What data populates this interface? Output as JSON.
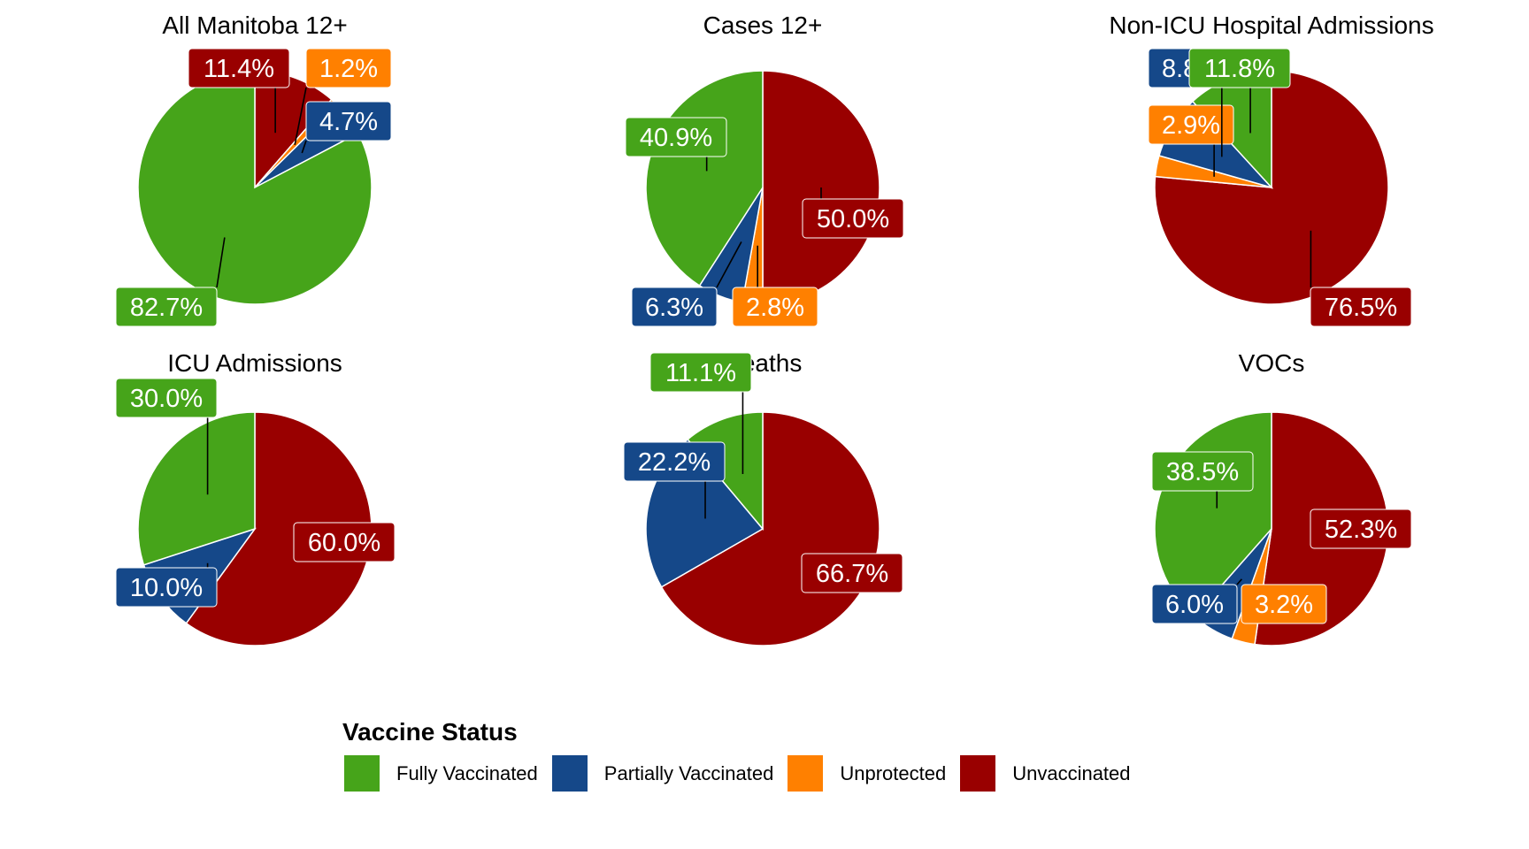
{
  "chart_data": {
    "type": "pie",
    "category_order": [
      "Fully Vaccinated",
      "Partially Vaccinated",
      "Unprotected",
      "Unvaccinated"
    ],
    "colors": {
      "Fully Vaccinated": "#46A41A",
      "Partially Vaccinated": "#154889",
      "Unprotected": "#FF8000",
      "Unvaccinated": "#990000"
    },
    "panels": [
      {
        "title": "All Manitoba 12+",
        "slices": [
          {
            "category": "Unvaccinated",
            "value": 11.4,
            "label": "11.4%"
          },
          {
            "category": "Unprotected",
            "value": 1.2,
            "label": "1.2%"
          },
          {
            "category": "Partially Vaccinated",
            "value": 4.7,
            "label": "4.7%"
          },
          {
            "category": "Fully Vaccinated",
            "value": 82.7,
            "label": "82.7%"
          }
        ]
      },
      {
        "title": "Cases 12+",
        "slices": [
          {
            "category": "Unvaccinated",
            "value": 50.0,
            "label": "50.0%"
          },
          {
            "category": "Unprotected",
            "value": 2.8,
            "label": "2.8%"
          },
          {
            "category": "Partially Vaccinated",
            "value": 6.3,
            "label": "6.3%"
          },
          {
            "category": "Fully Vaccinated",
            "value": 40.9,
            "label": "40.9%"
          }
        ]
      },
      {
        "title": "Non-ICU Hospital Admissions",
        "slices": [
          {
            "category": "Unvaccinated",
            "value": 76.5,
            "label": "76.5%"
          },
          {
            "category": "Unprotected",
            "value": 2.9,
            "label": "2.9%"
          },
          {
            "category": "Partially Vaccinated",
            "value": 8.8,
            "label": "8.8%"
          },
          {
            "category": "Fully Vaccinated",
            "value": 11.8,
            "label": "11.8%"
          }
        ]
      },
      {
        "title": "ICU Admissions",
        "slices": [
          {
            "category": "Unvaccinated",
            "value": 60.0,
            "label": "60.0%"
          },
          {
            "category": "Partially Vaccinated",
            "value": 10.0,
            "label": "10.0%"
          },
          {
            "category": "Fully Vaccinated",
            "value": 30.0,
            "label": "30.0%"
          }
        ]
      },
      {
        "title": "Deaths",
        "slices": [
          {
            "category": "Unvaccinated",
            "value": 66.7,
            "label": "66.7%"
          },
          {
            "category": "Partially Vaccinated",
            "value": 22.2,
            "label": "22.2%"
          },
          {
            "category": "Fully Vaccinated",
            "value": 11.1,
            "label": "11.1%"
          }
        ]
      },
      {
        "title": "VOCs",
        "slices": [
          {
            "category": "Unvaccinated",
            "value": 52.3,
            "label": "52.3%"
          },
          {
            "category": "Unprotected",
            "value": 3.2,
            "label": "3.2%"
          },
          {
            "category": "Partially Vaccinated",
            "value": 6.0,
            "label": "6.0%"
          },
          {
            "category": "Fully Vaccinated",
            "value": 38.5,
            "label": "38.5%"
          }
        ]
      }
    ],
    "legend": {
      "title": "Vaccine Status",
      "position": "bottom",
      "items": [
        "Fully Vaccinated",
        "Partially Vaccinated",
        "Unprotected",
        "Unvaccinated"
      ]
    }
  }
}
